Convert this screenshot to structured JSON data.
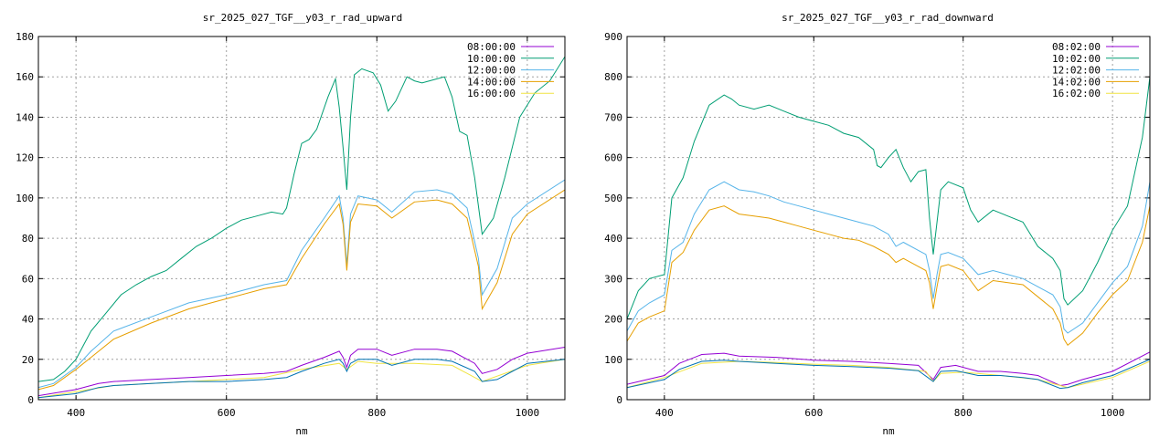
{
  "chart_data": [
    {
      "type": "line",
      "title": "sr_2025_027_TGF__y03_r_rad_upward",
      "xlabel": "nm",
      "ylabel": "",
      "xlim": [
        350,
        1050
      ],
      "ylim": [
        0,
        180
      ],
      "xticks": [
        400,
        600,
        800,
        1000
      ],
      "yticks": [
        0,
        20,
        40,
        60,
        80,
        100,
        120,
        140,
        160,
        180
      ],
      "grid": true,
      "legend_position": "top-right",
      "series": [
        {
          "name": "08:00:00",
          "color": "#9400d3",
          "x": [
            350,
            400,
            430,
            450,
            500,
            550,
            600,
            650,
            680,
            700,
            730,
            750,
            755,
            760,
            765,
            775,
            800,
            820,
            850,
            880,
            900,
            930,
            940,
            960,
            980,
            1000,
            1050
          ],
          "y": [
            2,
            5,
            8,
            9,
            10,
            11,
            12,
            13,
            14,
            17,
            21,
            24,
            21,
            16,
            22,
            25,
            25,
            22,
            25,
            25,
            24,
            18,
            13,
            15,
            20,
            23,
            26
          ]
        },
        {
          "name": "10:00:00",
          "color": "#009e73",
          "x": [
            350,
            370,
            385,
            400,
            420,
            440,
            460,
            480,
            500,
            520,
            540,
            560,
            580,
            600,
            620,
            640,
            660,
            675,
            680,
            690,
            700,
            710,
            720,
            735,
            745,
            750,
            755,
            760,
            765,
            770,
            780,
            795,
            805,
            815,
            825,
            840,
            850,
            860,
            870,
            880,
            890,
            900,
            910,
            920,
            930,
            940,
            955,
            970,
            990,
            1010,
            1030,
            1050
          ],
          "y": [
            9,
            10,
            14,
            20,
            34,
            43,
            52,
            57,
            61,
            64,
            70,
            76,
            80,
            85,
            89,
            91,
            93,
            92,
            95,
            112,
            127,
            129,
            134,
            150,
            159,
            145,
            125,
            104,
            140,
            161,
            164,
            162,
            156,
            143,
            148,
            160,
            158,
            157,
            158,
            159,
            160,
            150,
            133,
            131,
            110,
            82,
            90,
            110,
            140,
            152,
            158,
            170
          ]
        },
        {
          "name": "12:00:00",
          "color": "#56b4e9",
          "x": [
            350,
            370,
            400,
            420,
            450,
            500,
            550,
            600,
            650,
            680,
            700,
            730,
            750,
            755,
            760,
            765,
            775,
            800,
            820,
            850,
            880,
            900,
            920,
            935,
            940,
            960,
            980,
            1000,
            1050
          ],
          "y": [
            6,
            8,
            16,
            24,
            34,
            41,
            48,
            52,
            57,
            59,
            74,
            90,
            101,
            90,
            67,
            92,
            101,
            99,
            93,
            103,
            104,
            102,
            95,
            70,
            52,
            65,
            90,
            97,
            109
          ]
        },
        {
          "name": "14:00:00",
          "color": "#e69f00",
          "x": [
            350,
            370,
            400,
            420,
            450,
            500,
            550,
            600,
            650,
            680,
            700,
            730,
            750,
            755,
            760,
            765,
            775,
            800,
            820,
            850,
            880,
            900,
            920,
            935,
            940,
            960,
            980,
            1000,
            1050
          ],
          "y": [
            5,
            7,
            15,
            21,
            30,
            38,
            45,
            50,
            55,
            57,
            70,
            87,
            97,
            87,
            64,
            88,
            97,
            96,
            90,
            98,
            99,
            97,
            90,
            66,
            45,
            58,
            82,
            92,
            104
          ]
        },
        {
          "name": "16:00:00",
          "color": "#f0e442",
          "x": [
            350,
            400,
            450,
            500,
            550,
            600,
            650,
            700,
            750,
            760,
            775,
            800,
            850,
            900,
            940,
            1000,
            1050
          ],
          "y": [
            1,
            4,
            7,
            8,
            9,
            10,
            11,
            15,
            18,
            15,
            19,
            18,
            18,
            17,
            9,
            17,
            20
          ]
        },
        {
          "name": "",
          "color": "#0072b2",
          "x": [
            350,
            400,
            430,
            450,
            500,
            550,
            600,
            650,
            680,
            700,
            730,
            750,
            755,
            760,
            765,
            775,
            800,
            820,
            850,
            880,
            900,
            930,
            940,
            960,
            980,
            1000,
            1050
          ],
          "y": [
            1,
            3,
            6,
            7,
            8,
            9,
            9,
            10,
            11,
            14,
            18,
            20,
            18,
            14,
            18,
            20,
            20,
            17,
            20,
            20,
            19,
            14,
            9,
            10,
            14,
            18,
            20
          ]
        }
      ]
    },
    {
      "type": "line",
      "title": "sr_2025_027_TGF__y03_r_rad_downward",
      "xlabel": "nm",
      "ylabel": "",
      "xlim": [
        350,
        1050
      ],
      "ylim": [
        0,
        900
      ],
      "xticks": [
        400,
        600,
        800,
        1000
      ],
      "yticks": [
        0,
        100,
        200,
        300,
        400,
        500,
        600,
        700,
        800,
        900
      ],
      "grid": true,
      "legend_position": "top-right",
      "series": [
        {
          "name": "08:02:00",
          "color": "#9400d3",
          "x": [
            350,
            400,
            420,
            450,
            480,
            500,
            550,
            600,
            650,
            700,
            740,
            760,
            770,
            790,
            820,
            850,
            880,
            900,
            930,
            940,
            960,
            1000,
            1050
          ],
          "y": [
            38,
            60,
            90,
            112,
            115,
            108,
            105,
            98,
            95,
            90,
            85,
            50,
            80,
            85,
            70,
            70,
            65,
            60,
            35,
            38,
            50,
            70,
            118
          ]
        },
        {
          "name": "10:02:00",
          "color": "#009e73",
          "x": [
            350,
            365,
            380,
            400,
            410,
            425,
            440,
            460,
            480,
            490,
            500,
            520,
            540,
            560,
            580,
            600,
            620,
            640,
            660,
            680,
            685,
            690,
            700,
            710,
            720,
            730,
            740,
            750,
            755,
            760,
            765,
            770,
            780,
            800,
            810,
            820,
            840,
            860,
            880,
            900,
            920,
            930,
            935,
            940,
            960,
            980,
            1000,
            1020,
            1040,
            1050
          ],
          "y": [
            200,
            270,
            300,
            310,
            500,
            550,
            640,
            730,
            755,
            745,
            730,
            720,
            730,
            715,
            700,
            690,
            680,
            660,
            650,
            620,
            580,
            575,
            600,
            620,
            575,
            540,
            565,
            570,
            450,
            360,
            440,
            520,
            540,
            525,
            470,
            440,
            470,
            455,
            440,
            380,
            350,
            320,
            250,
            235,
            270,
            340,
            420,
            480,
            650,
            800
          ]
        },
        {
          "name": "12:02:00",
          "color": "#56b4e9",
          "x": [
            350,
            365,
            380,
            400,
            410,
            425,
            440,
            460,
            480,
            500,
            520,
            540,
            560,
            580,
            600,
            620,
            640,
            660,
            680,
            700,
            710,
            720,
            740,
            750,
            755,
            760,
            765,
            770,
            780,
            800,
            820,
            840,
            860,
            880,
            900,
            920,
            930,
            935,
            940,
            960,
            980,
            1000,
            1020,
            1040,
            1050
          ],
          "y": [
            170,
            220,
            240,
            260,
            370,
            390,
            460,
            520,
            540,
            520,
            515,
            505,
            490,
            480,
            470,
            460,
            450,
            440,
            430,
            410,
            380,
            390,
            370,
            360,
            320,
            250,
            310,
            360,
            365,
            350,
            310,
            320,
            310,
            300,
            280,
            260,
            230,
            175,
            165,
            190,
            240,
            290,
            330,
            430,
            540
          ]
        },
        {
          "name": "14:02:00",
          "color": "#e69f00",
          "x": [
            350,
            365,
            380,
            400,
            410,
            425,
            440,
            460,
            480,
            500,
            520,
            540,
            560,
            580,
            600,
            620,
            640,
            660,
            680,
            700,
            710,
            720,
            740,
            750,
            755,
            760,
            765,
            770,
            780,
            800,
            820,
            840,
            860,
            880,
            900,
            920,
            930,
            935,
            940,
            960,
            980,
            1000,
            1020,
            1040,
            1050
          ],
          "y": [
            145,
            190,
            205,
            220,
            340,
            365,
            420,
            470,
            480,
            460,
            455,
            450,
            440,
            430,
            420,
            410,
            400,
            395,
            380,
            360,
            340,
            350,
            330,
            320,
            290,
            225,
            280,
            330,
            335,
            320,
            270,
            295,
            290,
            285,
            255,
            225,
            190,
            150,
            135,
            165,
            215,
            260,
            295,
            390,
            480
          ]
        },
        {
          "name": "16:02:00",
          "color": "#f0e442",
          "x": [
            350,
            400,
            450,
            500,
            550,
            600,
            650,
            700,
            750,
            760,
            770,
            800,
            850,
            900,
            940,
            1000,
            1050
          ],
          "y": [
            30,
            55,
            90,
            95,
            92,
            88,
            85,
            80,
            70,
            45,
            65,
            68,
            60,
            50,
            30,
            55,
            95
          ]
        },
        {
          "name": "",
          "color": "#0072b2",
          "x": [
            350,
            400,
            420,
            450,
            480,
            500,
            550,
            600,
            650,
            700,
            740,
            760,
            770,
            790,
            820,
            850,
            880,
            900,
            930,
            940,
            960,
            1000,
            1050
          ],
          "y": [
            30,
            50,
            75,
            95,
            98,
            95,
            90,
            85,
            82,
            78,
            72,
            45,
            70,
            72,
            60,
            60,
            55,
            50,
            28,
            30,
            42,
            60,
            100
          ]
        }
      ]
    }
  ]
}
